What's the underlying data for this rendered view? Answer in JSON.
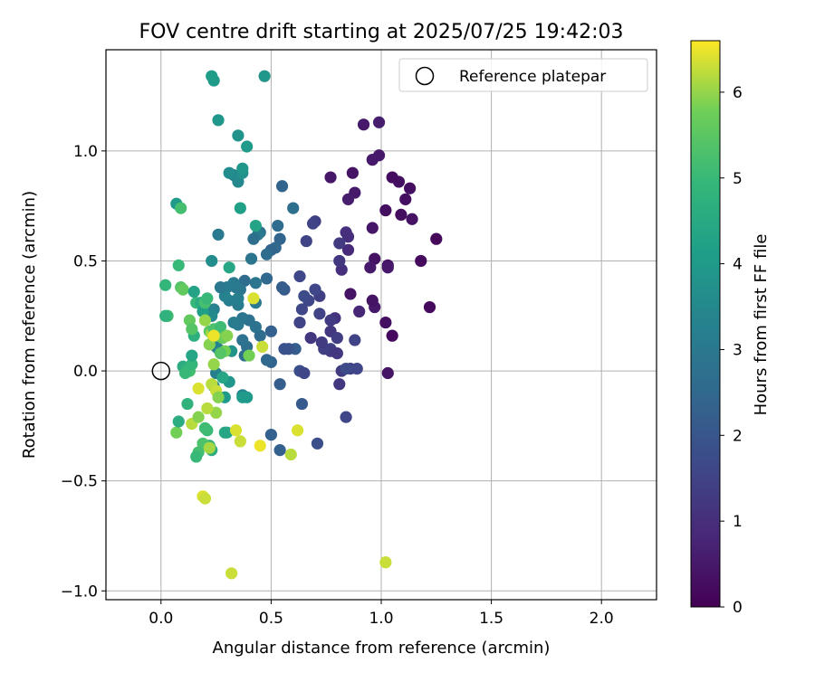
{
  "chart_data": {
    "type": "scatter",
    "title": "FOV centre drift starting at 2025/07/25 19:42:03",
    "xlabel": "Angular distance from reference (arcmin)",
    "ylabel": "Rotation from reference (arcmin)",
    "xlim": [
      -0.25,
      2.25
    ],
    "ylim": [
      -1.04,
      1.46
    ],
    "x_ticks": [
      "0.0",
      "0.5",
      "1.0",
      "1.5",
      "2.0"
    ],
    "x_tick_values": [
      0,
      0.5,
      1.0,
      1.5,
      2.0
    ],
    "y_ticks": [
      "1.0",
      "0.5",
      "0.0",
      "−0.5",
      "−1.0"
    ],
    "y_tick_values": [
      1.0,
      0.5,
      0.0,
      -0.5,
      -1.0
    ],
    "grid": true,
    "legend": {
      "placement": "top-right",
      "entries": [
        "Reference platepar"
      ]
    },
    "reference_point": {
      "x": 0.0,
      "y": 0.0,
      "label": "Reference platepar",
      "marker": "open-circle"
    },
    "colorbar": {
      "label": "Hours from first FF file",
      "colormap": "viridis",
      "range": [
        0,
        6.6
      ],
      "ticks": [
        "0",
        "1",
        "2",
        "3",
        "4",
        "5",
        "6"
      ],
      "tick_values": [
        0,
        1,
        2,
        3,
        4,
        5,
        6
      ]
    },
    "points": [
      {
        "x": 1.25,
        "y": 0.6,
        "c": 0.15
      },
      {
        "x": 1.22,
        "y": 0.29,
        "c": 0.2
      },
      {
        "x": 1.18,
        "y": 0.5,
        "c": 0.2
      },
      {
        "x": 1.13,
        "y": 0.83,
        "c": 0.3
      },
      {
        "x": 1.14,
        "y": 0.69,
        "c": 0.35
      },
      {
        "x": 1.11,
        "y": 0.78,
        "c": 0.3
      },
      {
        "x": 1.09,
        "y": 0.71,
        "c": 0.25
      },
      {
        "x": 1.08,
        "y": 0.86,
        "c": 0.3
      },
      {
        "x": 1.05,
        "y": 0.88,
        "c": 0.25
      },
      {
        "x": 1.05,
        "y": 0.16,
        "c": 0.2
      },
      {
        "x": 1.03,
        "y": 0.48,
        "c": 0.4
      },
      {
        "x": 1.03,
        "y": 0.47,
        "c": 0.5
      },
      {
        "x": 1.02,
        "y": 0.73,
        "c": 0.3
      },
      {
        "x": 1.02,
        "y": 0.22,
        "c": 0.3
      },
      {
        "x": 1.03,
        "y": -0.01,
        "c": 0.4
      },
      {
        "x": 0.99,
        "y": 0.98,
        "c": 0.5
      },
      {
        "x": 0.99,
        "y": 1.13,
        "c": 0.6
      },
      {
        "x": 0.96,
        "y": 0.96,
        "c": 0.5
      },
      {
        "x": 0.97,
        "y": 0.51,
        "c": 0.35
      },
      {
        "x": 0.97,
        "y": 0.29,
        "c": 0.5
      },
      {
        "x": 0.96,
        "y": 0.32,
        "c": 0.4
      },
      {
        "x": 0.96,
        "y": 0.65,
        "c": 0.45
      },
      {
        "x": 0.95,
        "y": 0.47,
        "c": 0.5
      },
      {
        "x": 0.92,
        "y": 1.12,
        "c": 0.5
      },
      {
        "x": 0.9,
        "y": 0.27,
        "c": 0.8
      },
      {
        "x": 0.88,
        "y": 0.81,
        "c": 0.5
      },
      {
        "x": 0.87,
        "y": 0.9,
        "c": 0.4
      },
      {
        "x": 0.86,
        "y": 0.35,
        "c": 0.4
      },
      {
        "x": 0.85,
        "y": 0.78,
        "c": 0.6
      },
      {
        "x": 0.85,
        "y": 0.61,
        "c": 1.0
      },
      {
        "x": 0.84,
        "y": 0.63,
        "c": 1.0
      },
      {
        "x": 0.85,
        "y": 0.55,
        "c": 0.9
      },
      {
        "x": 0.82,
        "y": 0.46,
        "c": 1.0
      },
      {
        "x": 0.81,
        "y": 0.5,
        "c": 1.2
      },
      {
        "x": 0.81,
        "y": 0.58,
        "c": 1.3
      },
      {
        "x": 0.77,
        "y": 0.88,
        "c": 0.45
      },
      {
        "x": 0.79,
        "y": 0.24,
        "c": 1.1
      },
      {
        "x": 0.77,
        "y": 0.23,
        "c": 1.3
      },
      {
        "x": 0.77,
        "y": 0.18,
        "c": 1.2
      },
      {
        "x": 0.8,
        "y": 0.15,
        "c": 1.4
      },
      {
        "x": 0.77,
        "y": 0.1,
        "c": 1.5
      },
      {
        "x": 0.77,
        "y": 0.09,
        "c": 1.3
      },
      {
        "x": 0.8,
        "y": 0.08,
        "c": 1.2
      },
      {
        "x": 0.82,
        "y": 0.0,
        "c": 1.3
      },
      {
        "x": 0.81,
        "y": -0.06,
        "c": 1.2
      },
      {
        "x": 0.86,
        "y": 0.01,
        "c": 1.4
      },
      {
        "x": 0.89,
        "y": 0.01,
        "c": 1.6
      },
      {
        "x": 0.88,
        "y": 0.14,
        "c": 1.5
      },
      {
        "x": 0.84,
        "y": 0.01,
        "c": 1.7
      },
      {
        "x": 0.84,
        "y": -0.21,
        "c": 1.6
      },
      {
        "x": 0.74,
        "y": 0.1,
        "c": 1.4
      },
      {
        "x": 0.73,
        "y": 0.13,
        "c": 1.3
      },
      {
        "x": 0.72,
        "y": 0.26,
        "c": 1.5
      },
      {
        "x": 0.72,
        "y": 0.34,
        "c": 1.4
      },
      {
        "x": 0.71,
        "y": -0.33,
        "c": 1.8
      },
      {
        "x": 0.7,
        "y": 0.37,
        "c": 1.6
      },
      {
        "x": 0.7,
        "y": 0.68,
        "c": 1.4
      },
      {
        "x": 0.69,
        "y": 0.67,
        "c": 1.5
      },
      {
        "x": 0.68,
        "y": 0.15,
        "c": 1.2
      },
      {
        "x": 0.67,
        "y": 0.32,
        "c": 1.6
      },
      {
        "x": 0.66,
        "y": 0.59,
        "c": 1.5
      },
      {
        "x": 0.65,
        "y": 0.34,
        "c": 1.7
      },
      {
        "x": 0.64,
        "y": 0.28,
        "c": 1.6
      },
      {
        "x": 0.63,
        "y": 0.22,
        "c": 1.5
      },
      {
        "x": 0.63,
        "y": 0.43,
        "c": 1.6
      },
      {
        "x": 0.63,
        "y": 0.0,
        "c": 1.8
      },
      {
        "x": 0.65,
        "y": -0.01,
        "c": 1.6
      },
      {
        "x": 0.64,
        "y": -0.15,
        "c": 2.1
      },
      {
        "x": 0.61,
        "y": 0.1,
        "c": 2.2
      },
      {
        "x": 0.58,
        "y": 0.1,
        "c": 2.0
      },
      {
        "x": 0.56,
        "y": 0.1,
        "c": 1.9
      },
      {
        "x": 0.56,
        "y": 0.37,
        "c": 2.1
      },
      {
        "x": 0.55,
        "y": 0.84,
        "c": 2.4
      },
      {
        "x": 0.55,
        "y": 0.38,
        "c": 2.2
      },
      {
        "x": 0.54,
        "y": 0.6,
        "c": 2.4
      },
      {
        "x": 0.54,
        "y": -0.06,
        "c": 2.2
      },
      {
        "x": 0.54,
        "y": -0.36,
        "c": 2.3
      },
      {
        "x": 0.53,
        "y": 0.66,
        "c": 2.6
      },
      {
        "x": 0.52,
        "y": 0.56,
        "c": 2.5
      },
      {
        "x": 0.5,
        "y": 0.55,
        "c": 2.4
      },
      {
        "x": 0.5,
        "y": 0.18,
        "c": 2.3
      },
      {
        "x": 0.5,
        "y": 0.04,
        "c": 2.4
      },
      {
        "x": 0.5,
        "y": -0.29,
        "c": 2.3
      },
      {
        "x": 0.48,
        "y": 0.42,
        "c": 2.5
      },
      {
        "x": 0.48,
        "y": 0.53,
        "c": 2.6
      },
      {
        "x": 0.48,
        "y": 0.05,
        "c": 2.5
      },
      {
        "x": 0.6,
        "y": 0.74,
        "c": 2.7
      },
      {
        "x": 0.45,
        "y": 0.16,
        "c": 2.6
      },
      {
        "x": 0.45,
        "y": 0.63,
        "c": 2.8
      },
      {
        "x": 0.44,
        "y": 0.62,
        "c": 3.0
      },
      {
        "x": 0.43,
        "y": 0.2,
        "c": 2.8
      },
      {
        "x": 0.43,
        "y": 0.31,
        "c": 3.0
      },
      {
        "x": 0.43,
        "y": 0.4,
        "c": 2.9
      },
      {
        "x": 0.42,
        "y": 0.6,
        "c": 2.7
      },
      {
        "x": 0.41,
        "y": 0.51,
        "c": 2.9
      },
      {
        "x": 0.4,
        "y": 0.23,
        "c": 2.8
      },
      {
        "x": 0.39,
        "y": 0.11,
        "c": 2.7
      },
      {
        "x": 0.38,
        "y": 0.41,
        "c": 2.6
      },
      {
        "x": 0.38,
        "y": 0.07,
        "c": 2.7
      },
      {
        "x": 0.37,
        "y": 0.24,
        "c": 2.9
      },
      {
        "x": 0.37,
        "y": 0.14,
        "c": 2.8
      },
      {
        "x": 0.37,
        "y": -0.11,
        "c": 3.3
      },
      {
        "x": 0.36,
        "y": 0.37,
        "c": 2.9
      },
      {
        "x": 0.35,
        "y": 0.21,
        "c": 3.0
      },
      {
        "x": 0.35,
        "y": 0.3,
        "c": 3.1
      },
      {
        "x": 0.35,
        "y": 0.33,
        "c": 3.2
      },
      {
        "x": 0.34,
        "y": 0.38,
        "c": 3.0
      },
      {
        "x": 0.33,
        "y": 0.22,
        "c": 3.1
      },
      {
        "x": 0.33,
        "y": 0.4,
        "c": 3.0
      },
      {
        "x": 0.33,
        "y": 0.89,
        "c": 3.4
      },
      {
        "x": 0.35,
        "y": 0.86,
        "c": 3.5
      },
      {
        "x": 0.35,
        "y": 1.07,
        "c": 3.8
      },
      {
        "x": 0.37,
        "y": 0.9,
        "c": 3.7
      },
      {
        "x": 0.37,
        "y": 0.92,
        "c": 3.9
      },
      {
        "x": 0.39,
        "y": 1.02,
        "c": 4.0
      },
      {
        "x": 0.31,
        "y": 0.9,
        "c": 3.6
      },
      {
        "x": 0.31,
        "y": 0.32,
        "c": 3.2
      },
      {
        "x": 0.3,
        "y": 0.38,
        "c": 3.1
      },
      {
        "x": 0.29,
        "y": 0.34,
        "c": 3.3
      },
      {
        "x": 0.27,
        "y": 0.38,
        "c": 3.0
      },
      {
        "x": 0.26,
        "y": 0.62,
        "c": 3.0
      },
      {
        "x": 0.26,
        "y": 0.1,
        "c": 3.1
      },
      {
        "x": 0.25,
        "y": 0.11,
        "c": 3.3
      },
      {
        "x": 0.25,
        "y": -0.01,
        "c": 3.2
      },
      {
        "x": 0.24,
        "y": -0.07,
        "c": 3.4
      },
      {
        "x": 0.24,
        "y": 0.28,
        "c": 3.3
      },
      {
        "x": 0.23,
        "y": 0.25,
        "c": 3.5
      },
      {
        "x": 0.23,
        "y": 0.5,
        "c": 3.6
      },
      {
        "x": 0.26,
        "y": 1.14,
        "c": 3.9
      },
      {
        "x": 0.24,
        "y": 1.32,
        "c": 4.0
      },
      {
        "x": 0.23,
        "y": 1.34,
        "c": 4.1
      },
      {
        "x": 0.47,
        "y": 1.34,
        "c": 3.9
      },
      {
        "x": 0.36,
        "y": 0.74,
        "c": 4.2
      },
      {
        "x": 0.43,
        "y": 0.66,
        "c": 4.3
      },
      {
        "x": 0.31,
        "y": 0.47,
        "c": 4.4
      },
      {
        "x": 0.32,
        "y": 0.09,
        "c": 3.8
      },
      {
        "x": 0.31,
        "y": -0.05,
        "c": 3.9
      },
      {
        "x": 0.29,
        "y": -0.12,
        "c": 4.0
      },
      {
        "x": 0.37,
        "y": -0.12,
        "c": 4.1
      },
      {
        "x": 0.39,
        "y": -0.12,
        "c": 4.0
      },
      {
        "x": 0.28,
        "y": -0.03,
        "c": 4.4
      },
      {
        "x": 0.29,
        "y": -0.28,
        "c": 4.5
      },
      {
        "x": 0.3,
        "y": -0.28,
        "c": 4.4
      },
      {
        "x": 0.23,
        "y": -0.36,
        "c": 4.6
      },
      {
        "x": 0.22,
        "y": -0.34,
        "c": 4.8
      },
      {
        "x": 0.21,
        "y": -0.27,
        "c": 5.0
      },
      {
        "x": 0.2,
        "y": -0.26,
        "c": 5.1
      },
      {
        "x": 0.19,
        "y": -0.33,
        "c": 5.3
      },
      {
        "x": 0.17,
        "y": -0.37,
        "c": 5.2
      },
      {
        "x": 0.16,
        "y": -0.39,
        "c": 5.0
      },
      {
        "x": 0.07,
        "y": -0.28,
        "c": 5.8
      },
      {
        "x": 0.08,
        "y": -0.23,
        "c": 4.6
      },
      {
        "x": 0.12,
        "y": -0.15,
        "c": 4.8
      },
      {
        "x": 0.14,
        "y": -0.24,
        "c": 6.2
      },
      {
        "x": 0.17,
        "y": -0.21,
        "c": 5.9
      },
      {
        "x": 0.07,
        "y": 0.76,
        "c": 4.0
      },
      {
        "x": 0.09,
        "y": 0.74,
        "c": 5.2
      },
      {
        "x": 0.08,
        "y": 0.48,
        "c": 5.0
      },
      {
        "x": 0.09,
        "y": 0.38,
        "c": 5.4
      },
      {
        "x": 0.1,
        "y": 0.37,
        "c": 5.6
      },
      {
        "x": 0.02,
        "y": 0.39,
        "c": 4.9
      },
      {
        "x": 0.03,
        "y": 0.25,
        "c": 5.1
      },
      {
        "x": 0.02,
        "y": 0.25,
        "c": 4.8
      },
      {
        "x": 0.1,
        "y": 0.02,
        "c": 4.6
      },
      {
        "x": 0.12,
        "y": 0.01,
        "c": 4.8
      },
      {
        "x": 0.13,
        "y": 0.0,
        "c": 5.2
      },
      {
        "x": 0.11,
        "y": -0.01,
        "c": 5.0
      },
      {
        "x": 0.14,
        "y": 0.03,
        "c": 4.9
      },
      {
        "x": 0.14,
        "y": 0.07,
        "c": 4.4
      },
      {
        "x": 0.15,
        "y": 0.16,
        "c": 4.7
      },
      {
        "x": 0.13,
        "y": 0.23,
        "c": 5.6
      },
      {
        "x": 0.14,
        "y": 0.19,
        "c": 5.4
      },
      {
        "x": 0.16,
        "y": 0.31,
        "c": 5.0
      },
      {
        "x": 0.15,
        "y": 0.36,
        "c": 4.3
      },
      {
        "x": 0.18,
        "y": 0.31,
        "c": 4.6
      },
      {
        "x": 0.19,
        "y": 0.27,
        "c": 4.2
      },
      {
        "x": 0.2,
        "y": 0.31,
        "c": 5.2
      },
      {
        "x": 0.21,
        "y": 0.33,
        "c": 5.0
      },
      {
        "x": 0.22,
        "y": 0.18,
        "c": 5.5
      },
      {
        "x": 0.22,
        "y": 0.12,
        "c": 5.9
      },
      {
        "x": 0.23,
        "y": 0.17,
        "c": 6.1
      },
      {
        "x": 0.24,
        "y": 0.19,
        "c": 5.3
      },
      {
        "x": 0.26,
        "y": 0.16,
        "c": 5.6
      },
      {
        "x": 0.27,
        "y": 0.2,
        "c": 5.1
      },
      {
        "x": 0.28,
        "y": 0.15,
        "c": 5.7
      },
      {
        "x": 0.29,
        "y": 0.09,
        "c": 5.8
      },
      {
        "x": 0.27,
        "y": 0.08,
        "c": 5.4
      },
      {
        "x": 0.24,
        "y": 0.03,
        "c": 6.0
      },
      {
        "x": 0.23,
        "y": -0.06,
        "c": 6.2
      },
      {
        "x": 0.25,
        "y": -0.09,
        "c": 6.3
      },
      {
        "x": 0.26,
        "y": -0.12,
        "c": 5.9
      },
      {
        "x": 0.25,
        "y": -0.19,
        "c": 6.0
      },
      {
        "x": 0.21,
        "y": -0.17,
        "c": 6.2
      },
      {
        "x": 0.17,
        "y": -0.08,
        "c": 6.4
      },
      {
        "x": 0.22,
        "y": -0.35,
        "c": 6.1
      },
      {
        "x": 0.19,
        "y": -0.57,
        "c": 6.4
      },
      {
        "x": 0.2,
        "y": -0.58,
        "c": 6.3
      },
      {
        "x": 0.34,
        "y": -0.27,
        "c": 6.4
      },
      {
        "x": 0.36,
        "y": -0.32,
        "c": 6.3
      },
      {
        "x": 0.45,
        "y": -0.34,
        "c": 6.5
      },
      {
        "x": 0.59,
        "y": -0.38,
        "c": 6.2
      },
      {
        "x": 0.62,
        "y": -0.27,
        "c": 6.4
      },
      {
        "x": 0.32,
        "y": -0.92,
        "c": 6.3
      },
      {
        "x": 1.02,
        "y": -0.87,
        "c": 6.3
      },
      {
        "x": 0.42,
        "y": 0.33,
        "c": 6.4
      },
      {
        "x": 0.46,
        "y": 0.11,
        "c": 6.3
      },
      {
        "x": 0.4,
        "y": 0.07,
        "c": 5.8
      },
      {
        "x": 0.3,
        "y": 0.16,
        "c": 5.9
      },
      {
        "x": 0.24,
        "y": 0.16,
        "c": 6.5
      },
      {
        "x": 0.2,
        "y": 0.23,
        "c": 6.0
      }
    ],
    "colors": {
      "reference_marker_stroke": "#000000",
      "grid": "#b0b0b0",
      "axes": "#000000"
    }
  }
}
